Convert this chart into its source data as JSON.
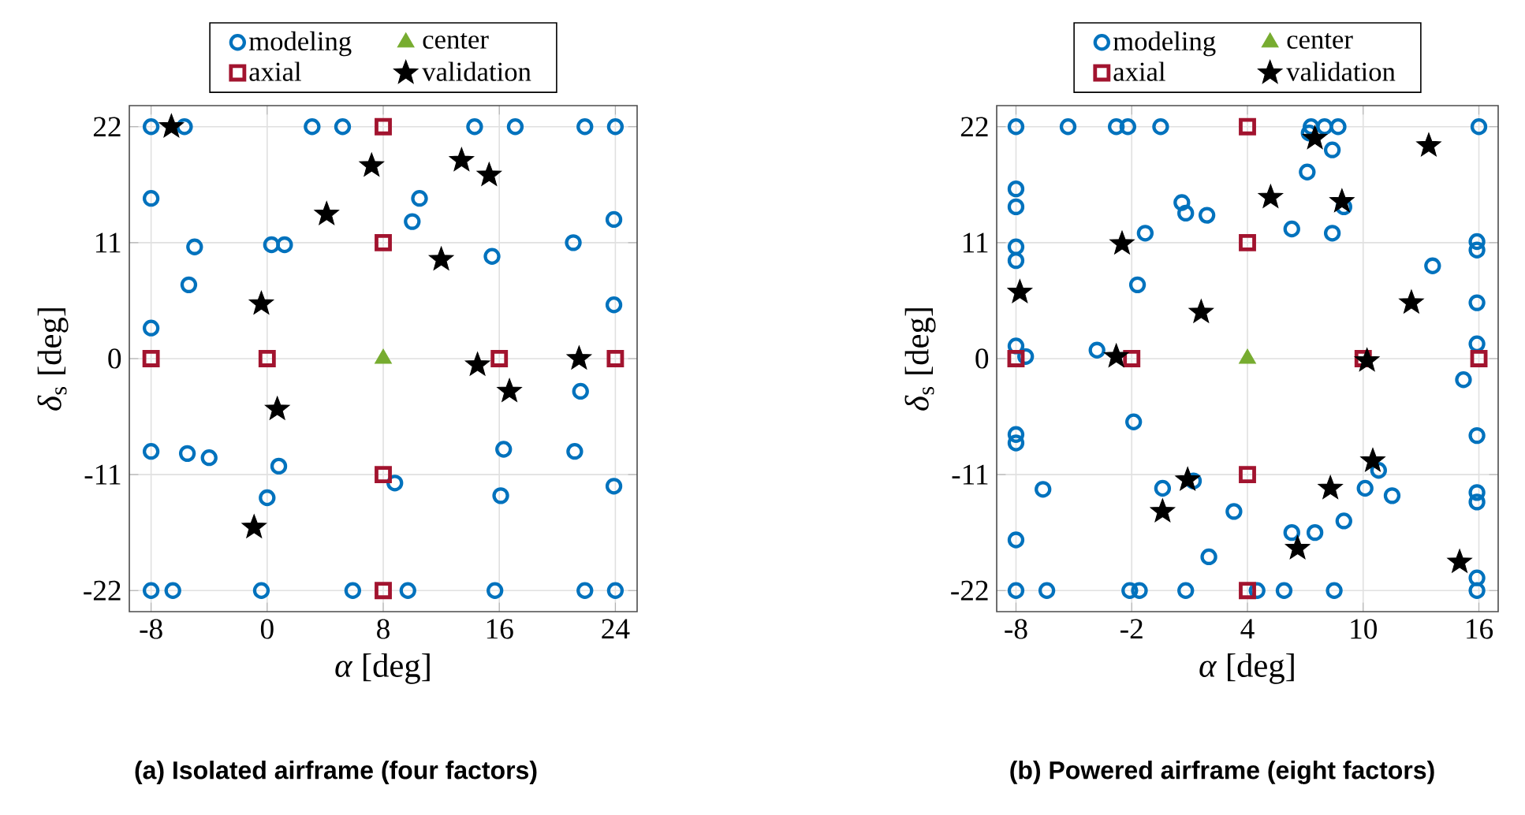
{
  "chart_data": [
    {
      "type": "scatter",
      "xlabel": "*α* [deg]",
      "ylabel": "*δ*$_{s}$ [deg]",
      "xlim": [
        -9.5,
        25.5
      ],
      "ylim": [
        -24,
        24
      ],
      "xticks": [
        -8,
        0,
        8,
        16,
        24
      ],
      "yticks": [
        -22,
        -11,
        0,
        11,
        22
      ],
      "grid": true,
      "legend": "top",
      "annotations": [
        "(a) Isolated airframe (four factors)"
      ],
      "series": [
        {
          "name": "modeling",
          "color": "#0072bd",
          "marker": "circle",
          "x": [
            -8,
            -5.7,
            3.1,
            5.2,
            14.3,
            17.1,
            21.9,
            24,
            -8,
            10.5,
            10.0,
            23.9,
            -5.0,
            0.3,
            1.2,
            21.1,
            15.5,
            -5.4,
            23.9,
            -8,
            21.6,
            -8,
            -5.5,
            -4.0,
            0.8,
            16.3,
            21.2,
            8.8,
            23.9,
            0,
            16.1,
            -8,
            -6.5,
            -0.4,
            5.9,
            9.7,
            15.7,
            21.9,
            24
          ],
          "values": [
            22,
            22,
            22,
            22,
            22,
            22,
            22,
            22,
            15.2,
            15.2,
            13.0,
            13.2,
            10.6,
            10.8,
            10.8,
            11.0,
            9.7,
            7.0,
            5.1,
            2.9,
            -3.1,
            -8.8,
            -9.0,
            -9.4,
            -10.2,
            -8.6,
            -8.8,
            -11.8,
            -12.1,
            -13.2,
            -13.0,
            -22,
            -22,
            -22,
            -22,
            -22,
            -22,
            -22,
            -22
          ]
        },
        {
          "name": "axial",
          "color": "#a2142f",
          "marker": "square",
          "x": [
            -8,
            0,
            16,
            24,
            8,
            8,
            8,
            8
          ],
          "values": [
            0,
            0,
            0,
            0,
            22,
            11,
            -11,
            -22
          ]
        },
        {
          "name": "center",
          "color": "#77ac30",
          "marker": "triangle",
          "x": [
            8
          ],
          "values": [
            0
          ]
        },
        {
          "name": "validation",
          "color": "#000000",
          "marker": "star",
          "x": [
            -6.6,
            7.2,
            13.4,
            15.3,
            4.1,
            12.0,
            -0.4,
            14.5,
            21.5,
            16.7,
            0.7,
            -0.9
          ],
          "values": [
            22,
            18.3,
            18.8,
            17.4,
            13.7,
            9.4,
            5.2,
            -0.6,
            0,
            -3.1,
            -4.8,
            -16.0
          ]
        }
      ]
    },
    {
      "type": "scatter",
      "xlabel": "*α* [deg]",
      "ylabel": "*δ*$_{s}$ [deg]",
      "xlim": [
        -9,
        17
      ],
      "ylim": [
        -24,
        24
      ],
      "xticks": [
        -8,
        -2,
        4,
        10,
        16
      ],
      "yticks": [
        -22,
        -11,
        0,
        11,
        22
      ],
      "grid": true,
      "legend": "top",
      "annotations": [
        "(b) Powered airframe (eight factors)"
      ],
      "series": [
        {
          "name": "modeling",
          "color": "#0072bd",
          "marker": "circle",
          "x": [
            -8,
            -5.3,
            -2.8,
            -2.2,
            -0.5,
            7.3,
            8.0,
            8.7,
            16,
            7.2,
            8.4,
            7.1,
            -8,
            -8,
            0.6,
            0.8,
            1.9,
            9.0,
            -1.3,
            6.3,
            8.4,
            -8,
            -8,
            15.9,
            15.9,
            -1.7,
            13.6,
            15.9,
            -8,
            -7.5,
            -3.8,
            15.9,
            15.2,
            -1.9,
            -8,
            -8,
            15.9,
            10.8,
            -6.6,
            -0.4,
            1.2,
            10.1,
            11.5,
            15.9,
            15.9,
            3.3,
            9.0,
            6.3,
            7.5,
            2.0,
            -8,
            15.9,
            -8,
            -6.4,
            -2.1,
            -1.6,
            0.8,
            4.5,
            5.9,
            8.5,
            15.9
          ],
          "values": [
            22,
            22,
            22,
            22,
            22,
            22,
            22,
            22,
            22,
            21.4,
            19.8,
            17.7,
            16.1,
            14.4,
            14.8,
            13.8,
            13.6,
            14.4,
            11.9,
            12.3,
            11.9,
            10.6,
            9.3,
            11.1,
            10.3,
            7.0,
            8.8,
            5.3,
            1.2,
            0.2,
            0.8,
            1.4,
            -2.0,
            -6.0,
            -7.2,
            -8.0,
            -7.3,
            -10.6,
            -12.4,
            -12.3,
            -11.6,
            -12.3,
            -13.0,
            -12.7,
            -13.6,
            -14.5,
            -15.4,
            -16.5,
            -16.5,
            -18.8,
            -17.2,
            -20.8,
            -22,
            -22,
            -22,
            -22,
            -22,
            -22,
            -22,
            -22,
            -22
          ]
        },
        {
          "name": "axial",
          "color": "#a2142f",
          "marker": "square",
          "x": [
            -8,
            -2,
            10,
            16,
            4,
            4,
            4,
            4
          ],
          "values": [
            0,
            0,
            0,
            0,
            22,
            11,
            -11,
            -22
          ]
        },
        {
          "name": "center",
          "color": "#77ac30",
          "marker": "triangle",
          "x": [
            4
          ],
          "values": [
            0
          ]
        },
        {
          "name": "validation",
          "color": "#000000",
          "marker": "star",
          "x": [
            7.5,
            13.4,
            5.2,
            8.9,
            -2.5,
            -7.8,
            1.6,
            12.5,
            -2.8,
            10.2,
            10.5,
            0.9,
            8.3,
            -0.4,
            6.6,
            15.0
          ],
          "values": [
            20.9,
            20.2,
            15.3,
            14.9,
            10.9,
            6.3,
            4.4,
            5.3,
            0.2,
            -0.2,
            -9.7,
            -11.5,
            -12.3,
            -14.5,
            -18.0,
            -19.3
          ]
        }
      ]
    }
  ]
}
